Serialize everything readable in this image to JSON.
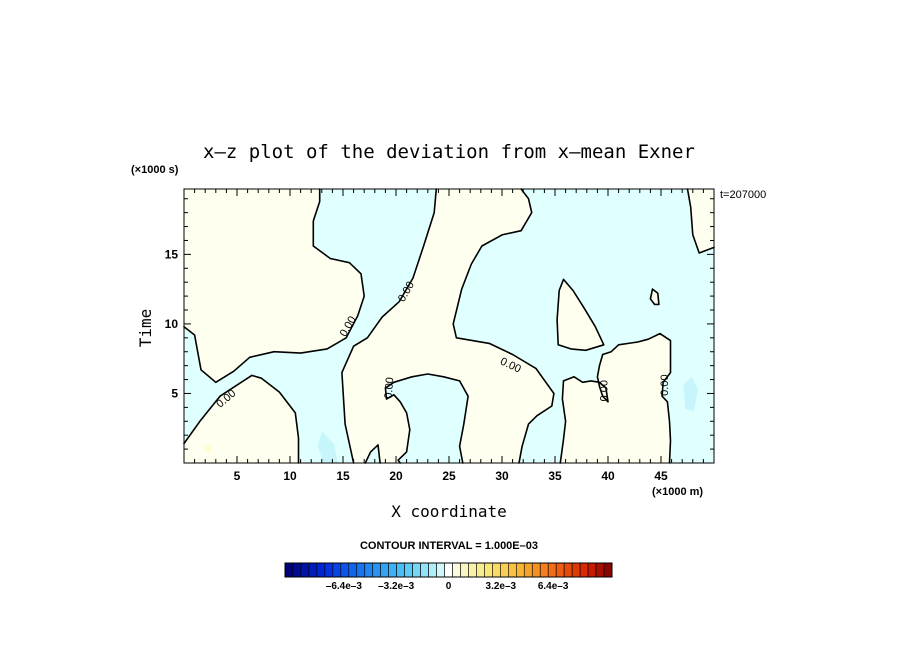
{
  "chart_data": {
    "type": "contour",
    "title": "x–z plot of the deviation from x–mean Exner",
    "xlabel": "X coordinate",
    "ylabel": "Time",
    "x_multiplier": "(×1000 m)",
    "y_multiplier": "(×1000 s)",
    "timestamp": "t=207000",
    "xlim": [
      0,
      50
    ],
    "ylim": [
      0,
      19.7
    ],
    "xticks": [
      5,
      10,
      15,
      20,
      25,
      30,
      35,
      40,
      45
    ],
    "yticks": [
      5,
      10,
      15
    ],
    "contour_interval_text": "CONTOUR INTERVAL = 1.000E–03",
    "contour_labels": [
      "0.00",
      "0.00",
      "0.00",
      "0.00",
      "0.00",
      "0.00",
      "0.00",
      "0.00",
      "0.00"
    ],
    "colorbar": {
      "tick_labels": [
        "–6.4e–3",
        "–3.2e–3",
        "0",
        "3.2e–3",
        "6.4e–3"
      ],
      "tick_values": [
        -0.0064,
        -0.0032,
        0,
        0.0032,
        0.0064
      ],
      "range": [
        -0.01,
        0.01
      ],
      "negative_color": "#e0ffff",
      "positive_color": "#fffff0"
    },
    "zero_contour_regions": {
      "positive": [
        [
          [
            0,
            19.7
          ],
          [
            12.8,
            19.7
          ],
          [
            12.8,
            18.8
          ],
          [
            12.2,
            17.4
          ],
          [
            12.2,
            15.6
          ],
          [
            13.8,
            14.7
          ],
          [
            15.6,
            14.4
          ],
          [
            16.7,
            13.6
          ],
          [
            17.0,
            12.0
          ],
          [
            16.4,
            10.6
          ],
          [
            15.3,
            9.0
          ],
          [
            13.5,
            8.2
          ],
          [
            11.0,
            7.9
          ],
          [
            8.5,
            8.0
          ],
          [
            6.2,
            7.6
          ],
          [
            4.7,
            6.6
          ],
          [
            3.0,
            5.8
          ],
          [
            1.6,
            6.7
          ],
          [
            1.0,
            9.2
          ],
          [
            0,
            9.8
          ]
        ],
        [
          [
            0,
            0
          ],
          [
            0,
            1.4
          ],
          [
            1.5,
            3.0
          ],
          [
            3.4,
            4.8
          ],
          [
            5.0,
            5.6
          ],
          [
            6.4,
            6.3
          ],
          [
            7.3,
            6.1
          ],
          [
            9.0,
            5.1
          ],
          [
            10.5,
            3.6
          ],
          [
            10.8,
            1.8
          ],
          [
            10.8,
            0
          ]
        ],
        [
          [
            16.0,
            0
          ],
          [
            15.2,
            2.8
          ],
          [
            14.9,
            6.5
          ],
          [
            16.0,
            8.4
          ],
          [
            17.3,
            9.0
          ],
          [
            18.7,
            10.5
          ],
          [
            20.3,
            11.6
          ],
          [
            21.6,
            13.3
          ],
          [
            22.6,
            15.6
          ],
          [
            23.6,
            18.0
          ],
          [
            23.8,
            19.7
          ],
          [
            31.8,
            19.7
          ],
          [
            32.5,
            19.0
          ],
          [
            32.8,
            18.0
          ],
          [
            31.8,
            16.7
          ],
          [
            30.0,
            16.4
          ],
          [
            28.1,
            15.6
          ],
          [
            27.1,
            14.3
          ],
          [
            26.2,
            12.5
          ],
          [
            25.4,
            10.0
          ],
          [
            25.7,
            9.0
          ],
          [
            28.8,
            8.6
          ],
          [
            31.0,
            7.8
          ],
          [
            33.2,
            6.8
          ],
          [
            34.9,
            5.0
          ],
          [
            34.7,
            4.1
          ],
          [
            33.3,
            3.4
          ],
          [
            32.5,
            2.8
          ],
          [
            31.9,
            1.2
          ],
          [
            31.6,
            0
          ],
          [
            26.3,
            0
          ],
          [
            26.0,
            1.2
          ],
          [
            26.4,
            2.8
          ],
          [
            26.8,
            4.8
          ],
          [
            26.0,
            5.9
          ],
          [
            24.5,
            6.2
          ],
          [
            23.0,
            6.4
          ],
          [
            21.5,
            6.2
          ],
          [
            19.8,
            5.8
          ],
          [
            19.0,
            5.4
          ],
          [
            19.1,
            4.6
          ],
          [
            19.8,
            4.9
          ],
          [
            20.4,
            4.4
          ],
          [
            21.0,
            3.6
          ],
          [
            21.3,
            2.4
          ],
          [
            21.0,
            0.8
          ],
          [
            20.2,
            0.2
          ],
          [
            20.4,
            0
          ],
          [
            18.5,
            0
          ],
          [
            18.3,
            1.3
          ],
          [
            17.6,
            0.8
          ],
          [
            17.1,
            0
          ]
        ],
        [
          [
            35.5,
            0
          ],
          [
            35.8,
            1.7
          ],
          [
            36.0,
            3.0
          ],
          [
            35.7,
            4.6
          ],
          [
            35.8,
            5.9
          ],
          [
            36.8,
            6.2
          ],
          [
            37.6,
            5.8
          ],
          [
            38.4,
            5.9
          ],
          [
            39.2,
            5.8
          ],
          [
            39.8,
            5.4
          ],
          [
            40.0,
            4.4
          ],
          [
            39.5,
            4.8
          ],
          [
            39.2,
            5.5
          ],
          [
            39.0,
            6.2
          ],
          [
            39.2,
            7.0
          ],
          [
            39.5,
            7.8
          ],
          [
            40.3,
            8.0
          ],
          [
            41.0,
            8.5
          ],
          [
            42.8,
            8.7
          ],
          [
            43.8,
            8.9
          ],
          [
            44.9,
            9.3
          ],
          [
            45.9,
            8.8
          ],
          [
            45.9,
            6.5
          ],
          [
            45.2,
            5.8
          ],
          [
            45.1,
            4.8
          ],
          [
            45.6,
            4.4
          ],
          [
            45.8,
            3.0
          ],
          [
            45.9,
            1.6
          ],
          [
            45.8,
            0
          ]
        ],
        [
          [
            35.8,
            13.2
          ],
          [
            36.7,
            12.4
          ],
          [
            37.7,
            11.2
          ],
          [
            38.8,
            9.8
          ],
          [
            39.6,
            8.5
          ],
          [
            37.9,
            8.1
          ],
          [
            36.5,
            8.2
          ],
          [
            35.3,
            8.5
          ],
          [
            35.2,
            10.3
          ],
          [
            35.4,
            12.4
          ]
        ],
        [
          [
            47.5,
            19.7
          ],
          [
            50,
            19.7
          ],
          [
            50,
            15.5
          ],
          [
            48.6,
            15.1
          ],
          [
            48.0,
            16.4
          ],
          [
            47.8,
            18.4
          ]
        ],
        [
          [
            44.2,
            12.5
          ],
          [
            44.7,
            12.2
          ],
          [
            44.8,
            11.4
          ],
          [
            44.4,
            11.4
          ],
          [
            44.0,
            11.8
          ]
        ]
      ],
      "negative_blobs": [
        [
          [
            13.0,
            2.3
          ],
          [
            14.2,
            1.3
          ],
          [
            14.5,
            0
          ],
          [
            13.2,
            0
          ],
          [
            12.6,
            1.2
          ]
        ],
        [
          [
            47.1,
            5.6
          ],
          [
            47.9,
            6.2
          ],
          [
            48.5,
            5.3
          ],
          [
            48.1,
            3.7
          ],
          [
            47.3,
            3.9
          ]
        ]
      ],
      "positive_blobs": [
        [
          [
            2.0,
            1.3
          ],
          [
            2.6,
            1.2
          ],
          [
            2.5,
            0.7
          ],
          [
            2.1,
            0.8
          ]
        ]
      ]
    }
  }
}
